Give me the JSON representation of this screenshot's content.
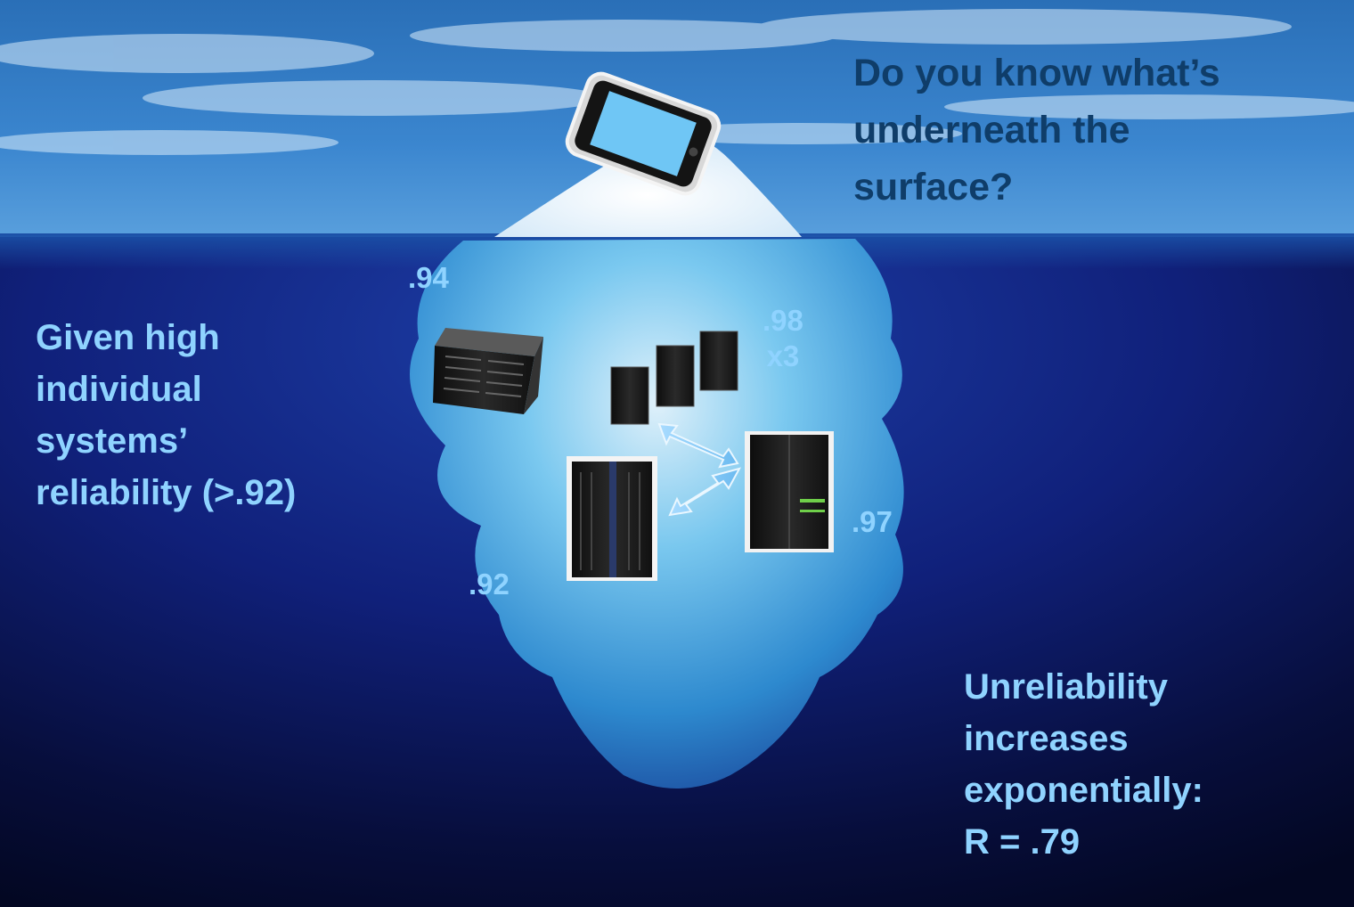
{
  "headline": [
    "Do you know what’s",
    "underneath the",
    "surface?"
  ],
  "left_note": [
    "Given high",
    "individual",
    "systems’",
    "reliability (>.92)"
  ],
  "right_note": [
    "Unreliability",
    "increases",
    "exponentially:",
    "R = .79"
  ],
  "labels": {
    "storage": ".94",
    "servers": ".98",
    "servers_count": "x3",
    "mainframe_right": ".97",
    "mainframe_left": ".92"
  },
  "colors": {
    "headline": "#0f3d69",
    "label": "#8fd3ff",
    "sky": "#2f74bd",
    "deep_water": "#050a25"
  }
}
